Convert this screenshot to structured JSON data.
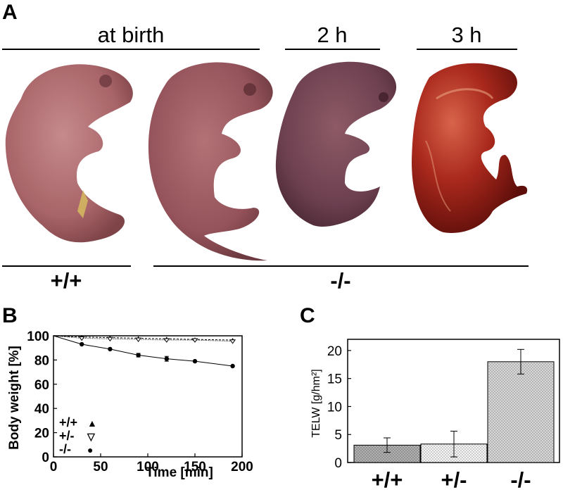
{
  "panel_a": {
    "letter": "A",
    "headers": [
      "at birth",
      "2 h",
      "3 h"
    ],
    "genotypes": [
      "+/+",
      "-/-"
    ]
  },
  "chart_data": [
    {
      "panel": "B",
      "type": "line",
      "xlabel": "Time [min]",
      "ylabel": "Body weight [%]",
      "xlim": [
        0,
        200
      ],
      "ylim": [
        0,
        100
      ],
      "xticks": [
        0,
        50,
        100,
        150,
        200
      ],
      "yticks": [
        0,
        20,
        40,
        60,
        80,
        100
      ],
      "legend_position": "bottom-left",
      "series": [
        {
          "name": "+/+",
          "marker": "▲",
          "x": [
            0,
            30,
            60,
            90,
            120,
            150,
            190
          ],
          "y": [
            100,
            99,
            98.5,
            98,
            97.5,
            97,
            96.5
          ],
          "err": [
            0,
            0.5,
            0.5,
            0.5,
            0.5,
            0.5,
            0.5
          ]
        },
        {
          "name": "+/-",
          "marker": "▽",
          "x": [
            0,
            30,
            60,
            90,
            120,
            150,
            190
          ],
          "y": [
            100,
            98,
            97.5,
            97,
            96.5,
            96.5,
            95.5
          ],
          "err": [
            0,
            0.5,
            0.5,
            0.5,
            0.5,
            0.5,
            0.5
          ]
        },
        {
          "name": "-/-",
          "marker": "●",
          "x": [
            0,
            30,
            60,
            90,
            120,
            150,
            190
          ],
          "y": [
            100,
            93,
            89,
            84,
            81,
            79,
            75
          ],
          "err": [
            0,
            0.5,
            0.5,
            1.5,
            2,
            0.5,
            0.5
          ]
        }
      ]
    },
    {
      "panel": "C",
      "type": "bar",
      "ylabel": "TELW [g/hm²]",
      "ylim": [
        0,
        22
      ],
      "yticks": [
        0,
        5,
        10,
        15,
        20
      ],
      "categories": [
        "+/+",
        "+/-",
        "-/-"
      ],
      "values": [
        3.1,
        3.3,
        18.0
      ],
      "errors": [
        1.3,
        2.3,
        2.2
      ]
    }
  ]
}
